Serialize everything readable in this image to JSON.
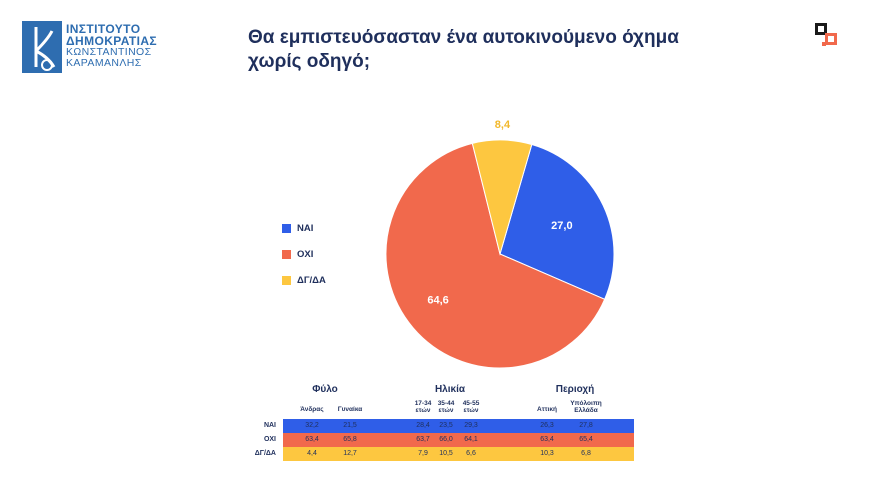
{
  "logo": {
    "line1": "ΙΝΣΤΙΤΟΥΤΟ",
    "line2": "ΔΗΜΟΚΡΑΤΙΑΣ",
    "line3": "ΚΩΝΣΤΑΝΤΙΝΟΣ",
    "line4": "ΚΑΡΑΜΑΝΛΗΣ",
    "mark_text": "k",
    "color": "#2e6db0"
  },
  "title_line1": "Θα εμπιστευόσασταν ένα αυτοκινούμενο όχημα",
  "title_line2": "χωρίς οδηγό;",
  "colors": {
    "nai": "#2f5ee8",
    "oxi": "#f1694c",
    "dgda": "#fdc740",
    "text": "#1f2f5c"
  },
  "chart_data": {
    "type": "pie",
    "title": "Θα εμπιστευόσασταν ένα αυτοκινούμενο όχημα χωρίς οδηγό;",
    "legend_position": "left",
    "slices": [
      {
        "label": "ΝΑΙ",
        "value": 27.0,
        "display": "27,0",
        "color": "#2f5ee8"
      },
      {
        "label": "ΟΧΙ",
        "value": 64.6,
        "display": "64,6",
        "color": "#f1694c"
      },
      {
        "label": "ΔΓ/ΔΑ",
        "value": 8.4,
        "display": "8,4",
        "color": "#fdc740"
      }
    ]
  },
  "breakdown_table": {
    "groups": [
      "Φύλο",
      "Ηλικία",
      "Περιοχή"
    ],
    "columns": [
      "Άνδρας",
      "Γυναίκα",
      "17-34 ετών",
      "35-44 ετών",
      "45-55 ετών",
      "Αττική",
      "Υπόλοιπη Ελλάδα"
    ],
    "rows": [
      {
        "label": "ΝΑΙ",
        "values": [
          "32,2",
          "21,5",
          "28,4",
          "23,5",
          "29,3",
          "26,3",
          "27,8"
        ]
      },
      {
        "label": "ΟΧΙ",
        "values": [
          "63,4",
          "65,8",
          "63,7",
          "66,0",
          "64,1",
          "63,4",
          "65,4"
        ]
      },
      {
        "label": "ΔΓ/ΔΑ",
        "values": [
          "4,4",
          "12,7",
          "7,9",
          "10,5",
          "6,6",
          "10,3",
          "6,8"
        ]
      }
    ]
  }
}
